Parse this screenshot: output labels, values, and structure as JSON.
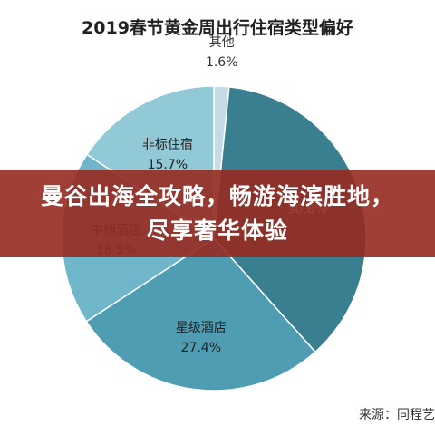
{
  "chart_data": {
    "type": "pie",
    "title": "2019春节黄金周出行住宿类型偏好",
    "slices": [
      {
        "label": "其他",
        "value": 1.6,
        "display": "1.6%",
        "color": "#c3dce6"
      },
      {
        "label": "",
        "value": 36.8,
        "display": "36.8%",
        "color": "#3a7f8f"
      },
      {
        "label": "星级酒店",
        "value": 27.4,
        "display": "27.4%",
        "color": "#4f9db3"
      },
      {
        "label": "中档酒店",
        "value": 18.5,
        "display": "18.5%",
        "color": "#6fb6ca"
      },
      {
        "label": "非标住宿",
        "value": 15.7,
        "display": "15.7%",
        "color": "#92c9d7"
      }
    ],
    "source": "来源：同程艺"
  },
  "banner": {
    "text": "曼谷出海全攻略，畅游海滨胜地，尽享奢华体验",
    "background": "#962a20"
  }
}
